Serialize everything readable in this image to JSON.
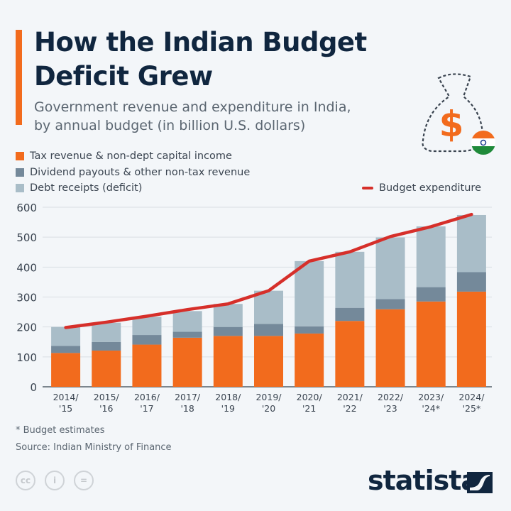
{
  "header": {
    "title_line1": "How the Indian Budget",
    "title_line2": "Deficit Grew",
    "subtitle_line1": "Government revenue and expenditure in India,",
    "subtitle_line2": "by annual budget (in billion U.S. dollars)"
  },
  "icons": {
    "bag": "money-bag-dollar-icon",
    "flag": "india-flag-icon"
  },
  "colors": {
    "tax": "#f26b1d",
    "dividend": "#74899a",
    "debt": "#a9bdc8",
    "expenditure": "#d62f2a",
    "accent": "#f26b1d",
    "title": "#10263f"
  },
  "chart_data": {
    "type": "bar",
    "stacked": true,
    "title": "How the Indian Budget Deficit Grew",
    "subtitle": "Government revenue and expenditure in India, by annual budget (in billion U.S. dollars)",
    "categories": [
      "2014/\n'15",
      "2015/\n'16",
      "2016/\n'17",
      "2017/\n'18",
      "2018/\n'19",
      "2019/\n'20",
      "2020/\n'21",
      "2021/\n'22",
      "2022/\n'23",
      "2023/\n'24*",
      "2024/\n'25*"
    ],
    "category_labels": [
      [
        "2014/",
        "'15"
      ],
      [
        "2015/",
        "'16"
      ],
      [
        "2016/",
        "'17"
      ],
      [
        "2017/",
        "'18"
      ],
      [
        "2018/",
        "'19"
      ],
      [
        "2019/",
        "'20"
      ],
      [
        "2020/",
        "'21"
      ],
      [
        "2021/",
        "'22"
      ],
      [
        "2022/",
        "'23"
      ],
      [
        "2023/",
        "'24*"
      ],
      [
        "2024/",
        "'25*"
      ]
    ],
    "series": [
      {
        "name": "Tax revenue & non-dept capital income",
        "type": "bar",
        "values": [
          113,
          121,
          141,
          164,
          170,
          170,
          178,
          220,
          259,
          285,
          318
        ]
      },
      {
        "name": "Dividend payouts & other non-tax revenue",
        "type": "bar",
        "values": [
          24,
          29,
          32,
          20,
          30,
          40,
          24,
          44,
          34,
          48,
          65
        ]
      },
      {
        "name": "Debt receipts (deficit)",
        "type": "bar",
        "values": [
          63,
          64,
          61,
          69,
          77,
          111,
          218,
          187,
          206,
          203,
          191
        ]
      },
      {
        "name": "Budget expenditure",
        "type": "line",
        "values": [
          198,
          216,
          236,
          258,
          277,
          321,
          420,
          451,
          502,
          535,
          576
        ]
      }
    ],
    "ylim": [
      0,
      600
    ],
    "yticks": [
      0,
      100,
      200,
      300,
      400,
      500,
      600
    ],
    "grid": true,
    "legend": "top-left"
  },
  "footer": {
    "note": "* Budget estimates",
    "source": "Source: Indian Ministry of Finance",
    "cc_labels": [
      "cc",
      "i",
      "="
    ],
    "brand": "statista"
  }
}
